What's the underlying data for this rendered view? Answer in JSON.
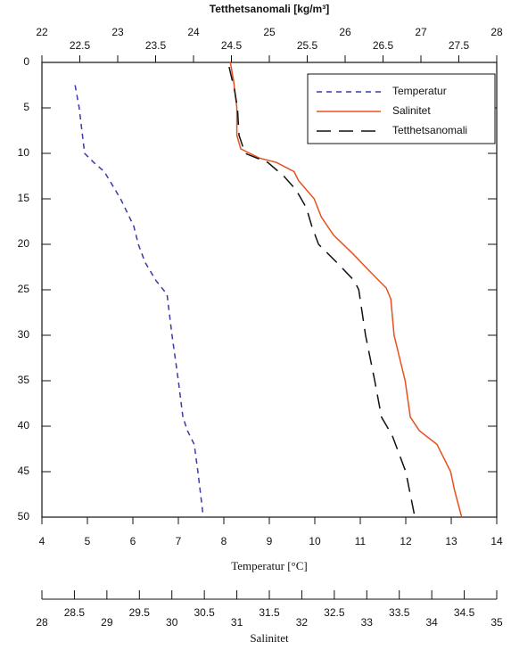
{
  "chart_data": {
    "type": "line",
    "xlabel": "Temperatur [°C]",
    "xlim": [
      4,
      14
    ],
    "xticks": [
      4,
      5,
      6,
      7,
      8,
      9,
      10,
      11,
      12,
      13,
      14
    ],
    "x2label": "Tetthetsanomali [kg/m³]",
    "x2lim": [
      22,
      28
    ],
    "x2ticks": [
      22,
      22.5,
      23,
      23.5,
      24,
      24.5,
      25,
      25.5,
      26,
      26.5,
      27,
      27.5,
      28
    ],
    "x3label": "Salinitet",
    "x3lim": [
      28,
      35
    ],
    "x3ticks": [
      28,
      28.5,
      29,
      29.5,
      30,
      30.5,
      31,
      31.5,
      32,
      32.5,
      33,
      33.5,
      34,
      34.5,
      35
    ],
    "ylim": [
      0,
      50
    ],
    "yticks": [
      0,
      5,
      10,
      15,
      20,
      25,
      30,
      35,
      40,
      45,
      50
    ],
    "y_inverted": true,
    "legend": "upper right",
    "series": [
      {
        "name": "Temperatur",
        "color": "#3a3aa8",
        "axis": "x",
        "dash": "6,5",
        "depth": [
          2.5,
          5,
          10,
          11,
          12,
          15,
          18,
          20,
          22,
          24,
          25.5,
          30,
          35,
          39,
          40.5,
          42,
          45,
          50
        ],
        "values": [
          4.73,
          4.82,
          4.94,
          5.14,
          5.37,
          5.73,
          6.02,
          6.12,
          6.27,
          6.51,
          6.75,
          6.86,
          7.0,
          7.1,
          7.2,
          7.35,
          7.43,
          7.55
        ]
      },
      {
        "name": "Salinitet",
        "color": "#e8501e",
        "axis": "x3",
        "dash": "none",
        "depth": [
          0,
          2,
          5,
          8,
          9.5,
          10.5,
          11,
          12,
          13,
          15,
          17,
          19,
          21,
          23,
          24.8,
          26,
          30,
          35,
          39,
          40.5,
          42,
          45,
          47,
          50
        ],
        "values": [
          30.9,
          30.95,
          31.0,
          31.0,
          31.06,
          31.34,
          31.61,
          31.88,
          31.95,
          32.19,
          32.3,
          32.49,
          32.78,
          33.05,
          33.3,
          33.37,
          33.42,
          33.59,
          33.67,
          33.81,
          34.08,
          34.29,
          34.35,
          34.46
        ]
      },
      {
        "name": "Tetthetsanomali",
        "color": "#111111",
        "axis": "x2",
        "dash": "16,9",
        "depth": [
          0.5,
          3,
          5,
          8,
          10,
          11,
          12.5,
          14,
          16,
          18,
          20,
          22,
          24,
          25,
          30,
          35,
          39,
          41,
          45,
          50
        ],
        "values": [
          24.47,
          24.54,
          24.58,
          24.6,
          24.68,
          24.98,
          25.19,
          25.35,
          25.49,
          25.56,
          25.65,
          25.89,
          26.12,
          26.18,
          26.27,
          26.39,
          26.48,
          26.62,
          26.8,
          26.92
        ]
      }
    ]
  }
}
